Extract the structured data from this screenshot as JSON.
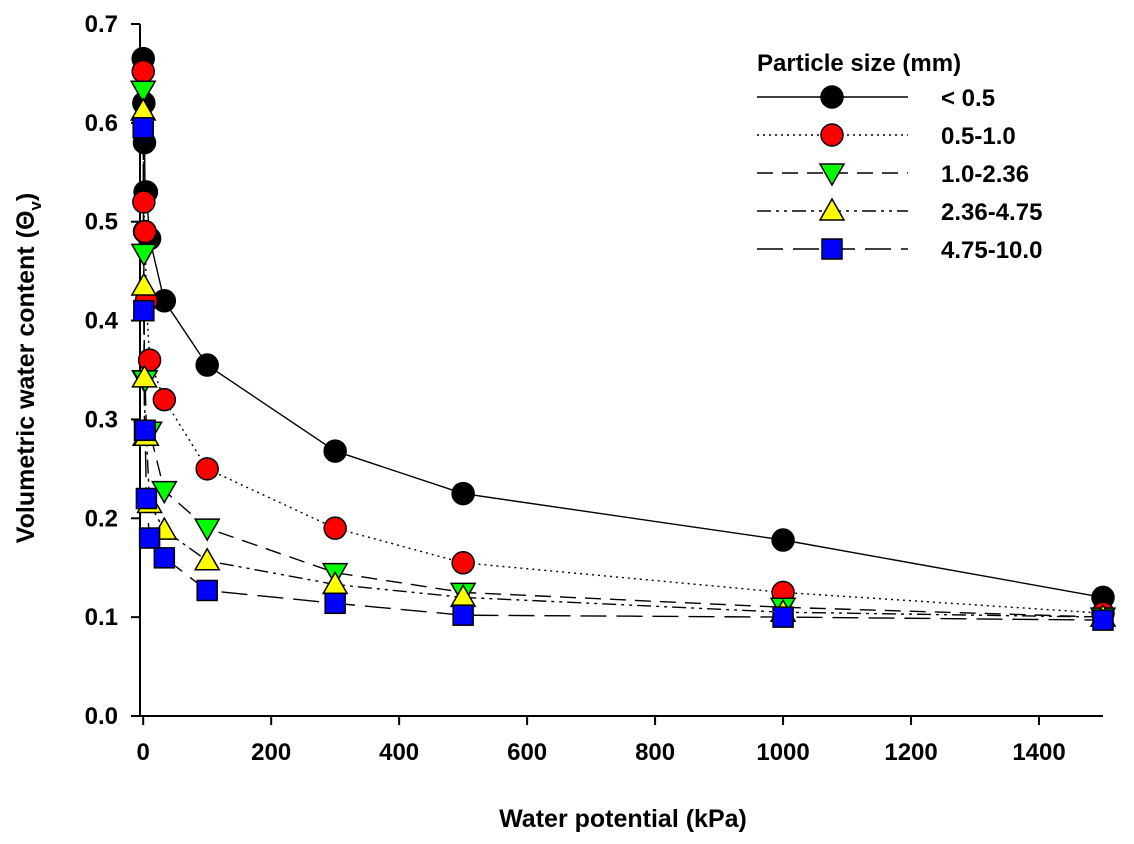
{
  "chart_data": {
    "type": "line",
    "xlabel": "Water potential (kPa)",
    "ylabel": "Volumetric water content",
    "ylabel_symbol": "Θ",
    "ylabel_subscript": "v",
    "xlim": [
      -5,
      1500
    ],
    "ylim": [
      0,
      0.7
    ],
    "xticks": [
      0,
      200,
      400,
      600,
      800,
      1000,
      1200,
      1400
    ],
    "yticks": [
      0.0,
      0.1,
      0.2,
      0.3,
      0.4,
      0.5,
      0.6,
      0.7
    ],
    "ytick_labels": [
      "0.0",
      "0.1",
      "0.2",
      "0.3",
      "0.4",
      "0.5",
      "0.6",
      "0.7"
    ],
    "grid": false,
    "legend_title": "Particle size (mm)",
    "legend_position": "top-right",
    "series": [
      {
        "name": "< 0.5",
        "marker": "circle",
        "fill": "#000000",
        "dash": "solid",
        "x": [
          0,
          1,
          2,
          3,
          5,
          10,
          33,
          100,
          300,
          500,
          1000,
          1500
        ],
        "y": [
          0.665,
          0.62,
          0.58,
          0.53,
          0.53,
          0.483,
          0.42,
          0.355,
          0.268,
          0.225,
          0.178,
          0.12
        ]
      },
      {
        "name": "0.5-1.0",
        "marker": "circle",
        "fill": "#ff0000",
        "dash": "dotted",
        "x": [
          0,
          1,
          2,
          3,
          5,
          10,
          33,
          100,
          300,
          500,
          1000,
          1500
        ],
        "y": [
          0.652,
          0.52,
          0.49,
          0.49,
          0.42,
          0.36,
          0.32,
          0.25,
          0.19,
          0.155,
          0.125,
          0.104
        ]
      },
      {
        "name": "1.0-2.36",
        "marker": "triangle-down",
        "fill": "#00ff00",
        "dash": "dashed",
        "x": [
          0,
          1,
          2,
          3,
          5,
          10,
          33,
          100,
          300,
          500,
          1000,
          1500
        ],
        "y": [
          0.633,
          0.468,
          0.34,
          0.34,
          0.288,
          0.288,
          0.228,
          0.19,
          0.145,
          0.125,
          0.11,
          0.1
        ]
      },
      {
        "name": "2.36-4.75",
        "marker": "triangle-up",
        "fill": "#ffff00",
        "dash": "dash-dot-dot",
        "x": [
          0,
          1,
          2,
          3,
          5,
          10,
          33,
          100,
          300,
          500,
          1000,
          1500
        ],
        "y": [
          0.612,
          0.435,
          0.342,
          0.283,
          0.283,
          0.215,
          0.188,
          0.157,
          0.133,
          0.12,
          0.105,
          0.1
        ]
      },
      {
        "name": "4.75-10.0",
        "marker": "square",
        "fill": "#0000ff",
        "dash": "long-dash",
        "x": [
          0,
          1,
          2,
          3,
          5,
          10,
          33,
          100,
          300,
          500,
          1000,
          1500
        ],
        "y": [
          0.595,
          0.41,
          0.289,
          0.289,
          0.22,
          0.18,
          0.16,
          0.127,
          0.114,
          0.102,
          0.1,
          0.097
        ]
      }
    ]
  }
}
